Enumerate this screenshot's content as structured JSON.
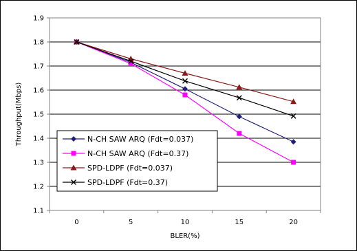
{
  "chart_data": {
    "type": "line",
    "title": "",
    "xlabel": "BLER(%)",
    "ylabel": "Throughput(Mbps)",
    "x": [
      0,
      5,
      10,
      15,
      20
    ],
    "x_tick_labels": [
      "0",
      "5",
      "10",
      "15",
      "20"
    ],
    "ylim": [
      1.1,
      1.9
    ],
    "y_ticks": [
      1.1,
      1.2,
      1.3,
      1.4,
      1.5,
      1.6,
      1.7,
      1.8,
      1.9
    ],
    "y_tick_labels": [
      "1.1",
      "1.2",
      "1.3",
      "1.4",
      "1.5",
      "1.6",
      "1.7",
      "1.8",
      "1.9"
    ],
    "grid": "horizontal",
    "legend_position": "bottom-left",
    "series": [
      {
        "name": "N-CH SAW ARQ (Fdt=0.037)",
        "values": [
          1.8,
          1.715,
          1.605,
          1.49,
          1.385
        ],
        "color": "#1f1f7a",
        "marker": "diamond"
      },
      {
        "name": "N-CH SAW ARQ (Fdt=0.37)",
        "values": [
          1.8,
          1.71,
          1.58,
          1.42,
          1.3
        ],
        "color": "#ff00ff",
        "marker": "square"
      },
      {
        "name": "SPD-LDPF (Fdt=0.037)",
        "values": [
          1.8,
          1.73,
          1.67,
          1.612,
          1.552
        ],
        "color": "#8b1a1a",
        "marker": "triangle"
      },
      {
        "name": "SPD-LDPF (Fdt=0.37)",
        "values": [
          1.8,
          1.72,
          1.638,
          1.568,
          1.492
        ],
        "color": "#000000",
        "marker": "x"
      }
    ]
  }
}
